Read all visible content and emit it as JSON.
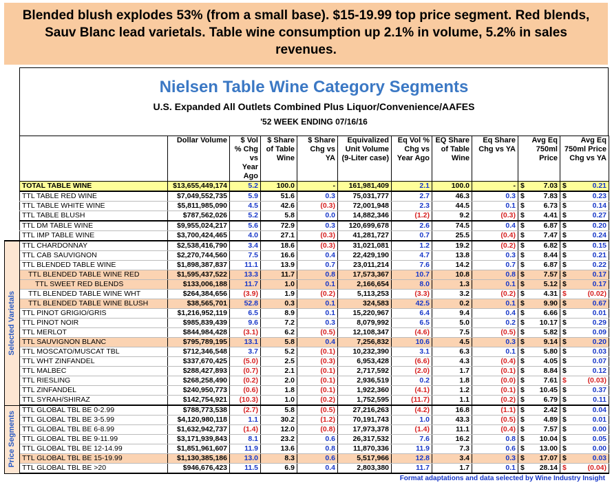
{
  "header": {
    "banner": "Blended blush explodes 53% (from a small base). $15-19.99 top price segment. Red blends, Sauv Blanc lead varietals. Table wine consumption up 2.1% in volume, 5.2% in sales revenues.",
    "title": "Nielsen Table Wine Category Segments",
    "subtitle": "U.S. Expanded All Outlets Combined Plus Liquor/Convenience/AAFES",
    "period": "'52 WEEK ENDING 07/16/16"
  },
  "table": {
    "currency": "$",
    "columns": [
      "Dollar Volume",
      "$ Vol % Chg vs Year Ago",
      "$ Share of Table Wine",
      "$ Share Chg vs YA",
      "Equivalized Unit Volume (9-Liter case)",
      "Eq Vol % Chg vs Year Ago",
      "EQ Share of Table Wine",
      "Eq Share Chg vs YA",
      "Avg Eq 750ml Price",
      "Avg Eq 750ml Price Chg vs YA"
    ],
    "groups": [
      {
        "label": null,
        "rows": [
          [
            "TOTAL TABLE WINE",
            "$13,655,449,174",
            "5.2",
            "100.0",
            "-",
            "161,981,409",
            "2.1",
            "100.0",
            "-",
            "7.03",
            "0.21"
          ],
          [
            "TTL TABLE RED WINE",
            "$7,049,552,735",
            "5.9",
            "51.6",
            "0.3",
            "75,031,777",
            "2.7",
            "46.3",
            "0.3",
            "7.83",
            "0.23"
          ],
          [
            "TTL TABLE WHITE WINE",
            "$5,811,985,090",
            "4.5",
            "42.6",
            "(0.3)",
            "72,001,948",
            "2.3",
            "44.5",
            "0.1",
            "6.73",
            "0.14"
          ],
          [
            "TTL TABLE BLUSH",
            "$787,562,026",
            "5.2",
            "5.8",
            "0.0",
            "14,882,346",
            "(1.2)",
            "9.2",
            "(0.3)",
            "4.41",
            "0.27"
          ],
          [
            "TTL DM TABLE WINE",
            "$9,955,024,217",
            "5.6",
            "72.9",
            "0.3",
            "120,699,678",
            "2.6",
            "74.5",
            "0.4",
            "6.87",
            "0.20"
          ],
          [
            "TTL IMP TABLE WINE",
            "$3,700,424,465",
            "4.0",
            "27.1",
            "(0.3)",
            "41,281,727",
            "0.7",
            "25.5",
            "(0.4)",
            "7.47",
            "0.24"
          ]
        ]
      },
      {
        "label": "Selected Varietals",
        "rows": [
          [
            "TTL CHARDONNAY",
            "$2,538,416,790",
            "3.4",
            "18.6",
            "(0.3)",
            "31,021,081",
            "1.2",
            "19.2",
            "(0.2)",
            "6.82",
            "0.15"
          ],
          [
            "TTL CAB SAUVIGNON",
            "$2,270,744,560",
            "7.5",
            "16.6",
            "0.4",
            "22,429,190",
            "4.7",
            "13.8",
            "0.3",
            "8.44",
            "0.21"
          ],
          [
            "TTL BLENDED TABLE WINE",
            "$1,898,387,837",
            "11.1",
            "13.9",
            "0.7",
            "23,011,214",
            "7.6",
            "14.2",
            "0.7",
            "6.87",
            "0.22"
          ],
          [
            "TTL BLENDED TABLE WINE RED",
            "$1,595,437,522",
            "13.3",
            "11.7",
            "0.8",
            "17,573,367",
            "10.7",
            "10.8",
            "0.8",
            "7.57",
            "0.17"
          ],
          [
            "TTL SWEET RED BLENDS",
            "$133,006,188",
            "11.7",
            "1.0",
            "0.1",
            "2,166,654",
            "8.0",
            "1.3",
            "0.1",
            "5.12",
            "0.17"
          ],
          [
            "TTL BLENDED TABLE WINE WHT",
            "$264,384,656",
            "(3.9)",
            "1.9",
            "(0.2)",
            "5,113,253",
            "(3.3)",
            "3.2",
            "(0.2)",
            "4.31",
            "(0.02)"
          ],
          [
            "TTL BLENDED TABLE WINE BLUSH",
            "$38,565,701",
            "52.8",
            "0.3",
            "0.1",
            "324,583",
            "42.5",
            "0.2",
            "0.1",
            "9.90",
            "0.67"
          ],
          [
            "TTL PINOT GRIGIO/GRIS",
            "$1,216,952,119",
            "6.5",
            "8.9",
            "0.1",
            "15,220,967",
            "6.4",
            "9.4",
            "0.4",
            "6.66",
            "0.01"
          ],
          [
            "TTL PINOT NOIR",
            "$985,839,439",
            "9.6",
            "7.2",
            "0.3",
            "8,079,992",
            "6.5",
            "5.0",
            "0.2",
            "10.17",
            "0.29"
          ],
          [
            "TTL MERLOT",
            "$844,984,428",
            "(3.1)",
            "6.2",
            "(0.5)",
            "12,108,347",
            "(4.6)",
            "7.5",
            "(0.5)",
            "5.82",
            "0.09"
          ],
          [
            "TTL SAUVIGNON BLANC",
            "$795,789,195",
            "13.1",
            "5.8",
            "0.4",
            "7,256,832",
            "10.6",
            "4.5",
            "0.3",
            "9.14",
            "0.20"
          ],
          [
            "TTL MOSCATO/MUSCAT TBL",
            "$712,346,548",
            "3.7",
            "5.2",
            "(0.1)",
            "10,232,390",
            "3.1",
            "6.3",
            "0.1",
            "5.80",
            "0.03"
          ],
          [
            "TTL WHT ZINFANDEL",
            "$337,670,425",
            "(5.0)",
            "2.5",
            "(0.3)",
            "6,953,428",
            "(6.6)",
            "4.3",
            "(0.4)",
            "4.05",
            "0.07"
          ],
          [
            "TTL MALBEC",
            "$288,427,893",
            "(0.7)",
            "2.1",
            "(0.1)",
            "2,717,592",
            "(2.0)",
            "1.7",
            "(0.1)",
            "8.84",
            "0.12"
          ],
          [
            "TTL RIESLING",
            "$268,258,490",
            "(0.2)",
            "2.0",
            "(0.1)",
            "2,936,519",
            "0.2",
            "1.8",
            "(0.0)",
            "7.61",
            "(0.03)"
          ],
          [
            "TTL ZINFANDEL",
            "$240,950,773",
            "(0.6)",
            "1.8",
            "(0.1)",
            "1,922,360",
            "(4.1)",
            "1.2",
            "(0.1)",
            "10.45",
            "0.37"
          ],
          [
            "TTL SYRAH/SHIRAZ",
            "$142,754,921",
            "(10.3)",
            "1.0",
            "(0.2)",
            "1,752,595",
            "(11.7)",
            "1.1",
            "(0.2)",
            "6.79",
            "0.11"
          ]
        ]
      },
      {
        "label": "Price Segments",
        "rows": [
          [
            "TTL GLOBAL TBL BE 0-2.99",
            "$788,773,538",
            "(2.7)",
            "5.8",
            "(0.5)",
            "27,216,263",
            "(4.2)",
            "16.8",
            "(1.1)",
            "2.42",
            "0.04"
          ],
          [
            "TTL GLOBAL TBL BE 3-5.99",
            "$4,120,980,118",
            "1.1",
            "30.2",
            "(1.2)",
            "70,191,743",
            "1.0",
            "43.3",
            "(0.5)",
            "4.89",
            "0.01"
          ],
          [
            "TTL GLOBAL TBL BE 6-8.99",
            "$1,632,942,737",
            "(1.4)",
            "12.0",
            "(0.8)",
            "17,973,378",
            "(1.4)",
            "11.1",
            "(0.4)",
            "7.57",
            "0.00"
          ],
          [
            "TTL GLOBAL TBL BE 9-11.99",
            "$3,171,939,843",
            "8.1",
            "23.2",
            "0.6",
            "26,317,532",
            "7.6",
            "16.2",
            "0.8",
            "10.04",
            "0.05"
          ],
          [
            "TTL GLOBAL TBL BE 12-14.99",
            "$1,851,961,607",
            "11.9",
            "13.6",
            "0.8",
            "11,870,336",
            "11.9",
            "7.3",
            "0.6",
            "13.00",
            "0.00"
          ],
          [
            "TTL GLOBAL TBL BE 15-19.99",
            "$1,130,385,186",
            "13.0",
            "8.3",
            "0.6",
            "5,517,966",
            "12.8",
            "3.4",
            "0.3",
            "17.07",
            "0.03"
          ],
          [
            "TTL GLOBAL TBL BE >20",
            "$946,676,423",
            "11.5",
            "6.9",
            "0.4",
            "2,803,380",
            "11.7",
            "1.7",
            "0.1",
            "28.14",
            "(0.04)"
          ]
        ]
      }
    ]
  },
  "footer": "Format adaptations and data selected by Wine Industry Insight"
}
